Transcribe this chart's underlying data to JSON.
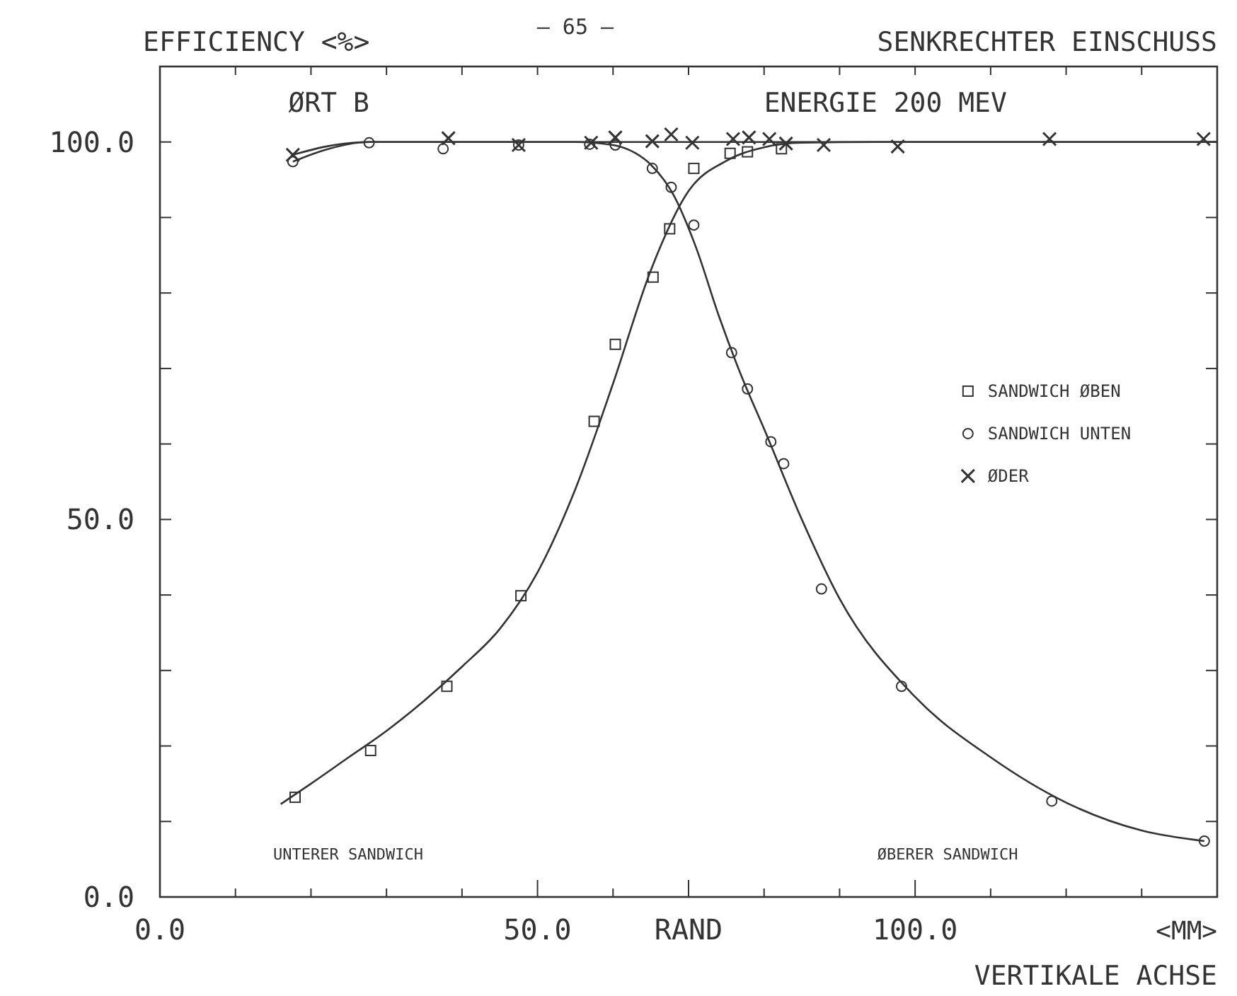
{
  "chart_data": {
    "type": "scatter",
    "title": "SENKRECHTER EINSCHUSS",
    "ylabel": "EFFICIENCY <%>",
    "xlabel": "VERTIKALE ACHSE",
    "annotations": [
      "— 65 —",
      "ØRT B",
      "ENERGIE 200 MEV",
      "UNTERER SANDWICH",
      "ØBERER SANDWICH",
      "<MM>"
    ],
    "xlim": [
      0,
      140
    ],
    "ylim": [
      0,
      110
    ],
    "xticks": [
      {
        "value": 0,
        "label": "0.0"
      },
      {
        "value": 10,
        "label": null
      },
      {
        "value": 20,
        "label": null
      },
      {
        "value": 30,
        "label": null
      },
      {
        "value": 40,
        "label": null
      },
      {
        "value": 50,
        "label": "50.0"
      },
      {
        "value": 60,
        "label": null
      },
      {
        "value": 70,
        "label": "RAND"
      },
      {
        "value": 80,
        "label": null
      },
      {
        "value": 90,
        "label": null
      },
      {
        "value": 100,
        "label": "100.0"
      },
      {
        "value": 110,
        "label": null
      },
      {
        "value": 120,
        "label": null
      },
      {
        "value": 130,
        "label": null
      }
    ],
    "yticks": [
      {
        "value": 0,
        "label": "0.0"
      },
      {
        "value": 10,
        "label": null
      },
      {
        "value": 20,
        "label": null
      },
      {
        "value": 30,
        "label": null
      },
      {
        "value": 40,
        "label": null
      },
      {
        "value": 50,
        "label": "50.0"
      },
      {
        "value": 60,
        "label": null
      },
      {
        "value": 70,
        "label": null
      },
      {
        "value": 80,
        "label": null
      },
      {
        "value": 90,
        "label": null
      },
      {
        "value": 100,
        "label": "100.0"
      }
    ],
    "grid": false,
    "legend": "right",
    "series": [
      {
        "name": "SANDWICH ØBEN",
        "color": "#333333",
        "marker": "square",
        "x": [
          17.9,
          27.9,
          38.0,
          47.8,
          57.5,
          60.3,
          65.3,
          67.5,
          70.7,
          75.5,
          77.8,
          82.3
        ],
        "values": [
          13.2,
          19.4,
          27.9,
          39.9,
          63,
          73.2,
          82.1,
          88.5,
          96.5,
          98.5,
          98.7,
          99.1
        ]
      },
      {
        "name": "SANDWICH UNTEN",
        "color": "#333333",
        "marker": "circle",
        "x": [
          17.6,
          27.7,
          37.5,
          47.5,
          56.9,
          60.3,
          65.2,
          67.7,
          70.7,
          75.7,
          77.8,
          80.9,
          82.6,
          87.6,
          98.2,
          118.1,
          138.3
        ],
        "values": [
          97.4,
          99.9,
          99.1,
          99.6,
          99.7,
          99.6,
          96.5,
          94.0,
          89.0,
          72.1,
          67.3,
          60.3,
          57.4,
          40.8,
          27.9,
          12.7,
          7.4
        ]
      },
      {
        "name": "ØDER",
        "color": "#333333",
        "marker": "cross",
        "x": [
          17.6,
          38.2,
          47.5,
          57.1,
          60.3,
          65.2,
          67.7,
          70.5,
          75.9,
          78.0,
          80.7,
          82.9,
          87.9,
          97.7,
          117.8,
          138.2
        ],
        "values": [
          98.3,
          100.5,
          99.6,
          99.9,
          100.6,
          100.1,
          101.0,
          99.9,
          100.4,
          100.6,
          100.4,
          99.8,
          99.6,
          99.4,
          100.4,
          100.4
        ]
      },
      {
        "type": "line",
        "color": "#333333",
        "marker": "none",
        "x": [
          16,
          20,
          25,
          30,
          35,
          40,
          45,
          50,
          55,
          60,
          65,
          70,
          75,
          80,
          85,
          95,
          140
        ],
        "values": [
          12.3,
          15,
          18.5,
          22,
          26,
          30.5,
          35.5,
          43,
          54,
          68,
          83,
          93.5,
          97.5,
          99.3,
          99.9,
          100,
          100
        ]
      },
      {
        "type": "line",
        "color": "#333333",
        "marker": "none",
        "x": [
          17.6,
          22,
          27.7,
          40,
          55,
          60,
          63,
          65,
          68,
          71,
          74,
          77,
          80,
          85,
          90,
          100,
          110,
          120,
          130,
          138.3
        ],
        "values": [
          97.4,
          99,
          100,
          100,
          100,
          99.6,
          98.5,
          97,
          93,
          86,
          77,
          69,
          62,
          50,
          39.5,
          26.5,
          18.5,
          12.5,
          8.8,
          7.4
        ]
      },
      {
        "type": "line",
        "color": "#333333",
        "marker": "none",
        "x": [
          17.6,
          22,
          27.7,
          140
        ],
        "values": [
          98.3,
          99.4,
          100,
          100
        ]
      }
    ]
  }
}
